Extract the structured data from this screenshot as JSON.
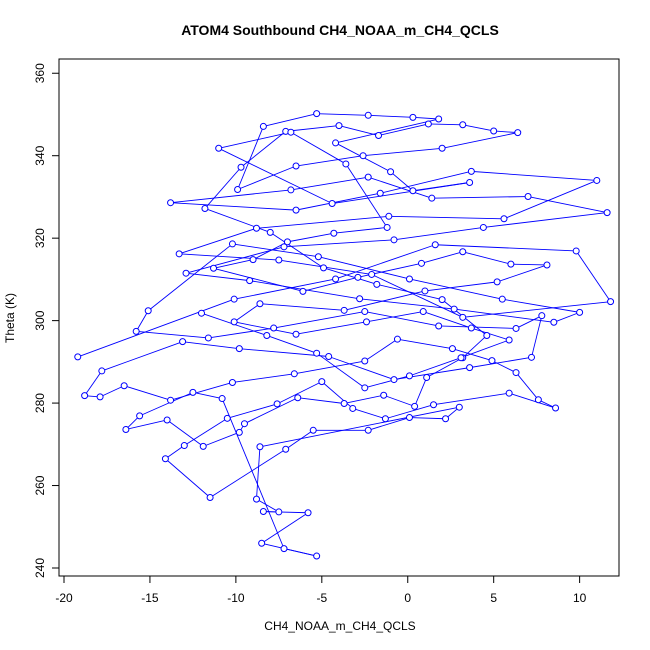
{
  "chart_data": {
    "type": "scatter",
    "title": "ATOM4 Southbound CH4_NOAA_m_CH4_QCLS",
    "xlabel": "CH4_NOAA_m_CH4_QCLS",
    "ylabel": "Theta (K)",
    "xlim": [
      -20,
      12
    ],
    "ylim": [
      240,
      362
    ],
    "xticks": [
      -20,
      -15,
      -10,
      -5,
      0,
      5,
      10
    ],
    "yticks": [
      240,
      260,
      280,
      300,
      320,
      340,
      360
    ],
    "grid": false,
    "legend": "none",
    "series_color": "#0000ff",
    "marker": "open-circle",
    "connected": true,
    "points": [
      [
        -19.2,
        291.2
      ],
      [
        -10.1,
        305.2
      ],
      [
        -4.2,
        310.1
      ],
      [
        1.6,
        318.4
      ],
      [
        9.8,
        316.9
      ],
      [
        11.8,
        304.6
      ],
      [
        3.2,
        300.8
      ],
      [
        -2.1,
        311.2
      ],
      [
        -7.5,
        314.7
      ],
      [
        -13.3,
        316.2
      ],
      [
        -8.8,
        322.4
      ],
      [
        -1.1,
        325.3
      ],
      [
        5.6,
        324.7
      ],
      [
        11.0,
        334.0
      ],
      [
        3.7,
        336.2
      ],
      [
        -1.6,
        330.9
      ],
      [
        -6.5,
        326.8
      ],
      [
        -13.8,
        328.6
      ],
      [
        -6.8,
        331.7
      ],
      [
        -2.3,
        334.8
      ],
      [
        1.4,
        329.7
      ],
      [
        7.0,
        330.1
      ],
      [
        11.6,
        326.2
      ],
      [
        4.4,
        322.6
      ],
      [
        -0.8,
        319.6
      ],
      [
        -7.2,
        317.9
      ],
      [
        -12.9,
        311.5
      ],
      [
        -9.2,
        309.7
      ],
      [
        -2.8,
        305.3
      ],
      [
        2.7,
        302.8
      ],
      [
        8.5,
        299.6
      ],
      [
        10.0,
        302.0
      ],
      [
        5.5,
        305.2
      ],
      [
        0.1,
        310.1
      ],
      [
        -5.2,
        315.5
      ],
      [
        -10.2,
        318.6
      ],
      [
        -15.1,
        302.4
      ],
      [
        -15.8,
        297.4
      ],
      [
        -11.6,
        295.8
      ],
      [
        -7.8,
        298.2
      ],
      [
        -2.5,
        302.2
      ],
      [
        1.8,
        298.7
      ],
      [
        6.3,
        298.1
      ],
      [
        7.8,
        301.2
      ],
      [
        7.2,
        291.1
      ],
      [
        3.6,
        288.6
      ],
      [
        -0.8,
        285.7
      ],
      [
        -4.6,
        291.3
      ],
      [
        -9.8,
        293.2
      ],
      [
        -13.1,
        294.9
      ],
      [
        -17.8,
        287.8
      ],
      [
        -18.8,
        281.8
      ],
      [
        -17.9,
        281.5
      ],
      [
        -16.5,
        284.2
      ],
      [
        -13.8,
        280.7
      ],
      [
        -10.2,
        285.0
      ],
      [
        -6.6,
        287.1
      ],
      [
        -2.5,
        290.2
      ],
      [
        -0.6,
        295.5
      ],
      [
        2.6,
        293.2
      ],
      [
        4.9,
        290.3
      ],
      [
        6.3,
        287.4
      ],
      [
        7.6,
        280.8
      ],
      [
        8.6,
        278.8
      ],
      [
        5.9,
        282.4
      ],
      [
        1.5,
        279.6
      ],
      [
        -1.3,
        276.2
      ],
      [
        -3.2,
        278.7
      ],
      [
        -5.0,
        285.2
      ],
      [
        -7.6,
        279.8
      ],
      [
        -10.5,
        276.3
      ],
      [
        -13.0,
        269.7
      ],
      [
        -14.1,
        266.5
      ],
      [
        -11.5,
        257.1
      ],
      [
        -7.1,
        268.8
      ],
      [
        -5.5,
        273.4
      ],
      [
        -2.3,
        273.4
      ],
      [
        0.1,
        276.5
      ],
      [
        2.2,
        276.2
      ],
      [
        3.0,
        279.0
      ],
      [
        -8.6,
        269.4
      ],
      [
        -8.8,
        256.7
      ],
      [
        -7.5,
        253.6
      ],
      [
        -8.4,
        253.7
      ],
      [
        -5.8,
        253.4
      ],
      [
        -8.5,
        246.0
      ],
      [
        -5.3,
        242.9
      ],
      [
        -7.2,
        244.7
      ],
      [
        -10.8,
        281.1
      ],
      [
        -12.5,
        282.6
      ],
      [
        -15.6,
        276.9
      ],
      [
        -16.4,
        273.6
      ],
      [
        -14.0,
        275.9
      ],
      [
        -11.9,
        269.5
      ],
      [
        -9.8,
        272.9
      ],
      [
        -9.5,
        275.0
      ],
      [
        -6.4,
        281.3
      ],
      [
        -3.7,
        279.9
      ],
      [
        -1.4,
        281.9
      ],
      [
        0.4,
        279.2
      ],
      [
        1.1,
        286.2
      ],
      [
        3.2,
        291.0
      ],
      [
        4.6,
        296.4
      ],
      [
        2.0,
        305.1
      ],
      [
        -1.8,
        308.8
      ],
      [
        -4.9,
        312.8
      ],
      [
        -8.0,
        321.4
      ],
      [
        -11.8,
        327.2
      ],
      [
        -9.7,
        337.2
      ],
      [
        -7.1,
        345.9
      ],
      [
        -4.0,
        347.3
      ],
      [
        -1.7,
        344.9
      ],
      [
        1.2,
        347.7
      ],
      [
        3.2,
        347.5
      ],
      [
        5.0,
        346.0
      ],
      [
        6.4,
        345.6
      ],
      [
        2.0,
        341.8
      ],
      [
        -2.6,
        340.0
      ],
      [
        -6.5,
        337.5
      ],
      [
        -9.9,
        331.8
      ],
      [
        -8.4,
        347.1
      ],
      [
        -5.3,
        350.2
      ],
      [
        -2.3,
        349.8
      ],
      [
        0.3,
        349.3
      ],
      [
        1.8,
        348.9
      ],
      [
        -4.2,
        343.1
      ],
      [
        -1.0,
        336.1
      ],
      [
        0.3,
        331.5
      ],
      [
        3.6,
        333.5
      ],
      [
        -4.4,
        328.4
      ],
      [
        -11.0,
        341.8
      ],
      [
        -6.8,
        345.7
      ],
      [
        -3.6,
        338.0
      ],
      [
        -1.2,
        322.6
      ],
      [
        -4.3,
        321.2
      ],
      [
        -7.0,
        319.1
      ],
      [
        -9.0,
        314.8
      ],
      [
        -11.3,
        312.7
      ],
      [
        -6.1,
        307.1
      ],
      [
        -2.9,
        310.5
      ],
      [
        0.8,
        313.9
      ],
      [
        3.2,
        316.7
      ],
      [
        6.0,
        313.7
      ],
      [
        8.1,
        313.5
      ],
      [
        5.2,
        309.4
      ],
      [
        1.0,
        307.2
      ],
      [
        -3.7,
        302.5
      ],
      [
        -8.6,
        304.1
      ],
      [
        -10.1,
        299.7
      ],
      [
        -6.5,
        296.7
      ],
      [
        -2.4,
        299.7
      ],
      [
        0.9,
        302.2
      ],
      [
        3.7,
        298.2
      ],
      [
        5.9,
        295.3
      ],
      [
        3.1,
        291.0
      ],
      [
        0.1,
        286.6
      ],
      [
        -2.5,
        283.7
      ],
      [
        -5.3,
        292.1
      ],
      [
        -8.2,
        296.4
      ],
      [
        -12.0,
        301.8
      ]
    ]
  }
}
